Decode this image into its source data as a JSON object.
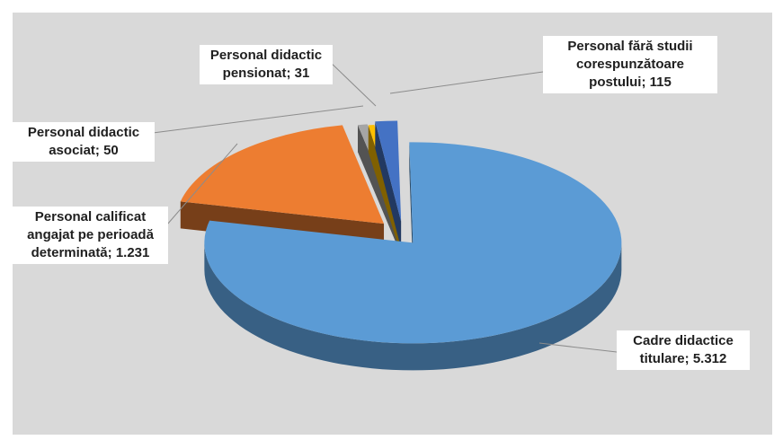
{
  "chart_data": {
    "type": "pie",
    "style": "3d exploded",
    "title": "",
    "legend": "none",
    "slices": [
      {
        "label": "Cadre didactice titulare; 5.312",
        "category": "Cadre didactice titulare",
        "value": 5312,
        "color": "#5b9bd5"
      },
      {
        "label": "Personal calificat angajat pe perioadă determinată; 1.231",
        "category": "Personal calificat angajat pe perioadă determinată",
        "value": 1231,
        "color": "#ed7d31"
      },
      {
        "label": "Personal didactic asociat; 50",
        "category": "Personal didactic asociat",
        "value": 50,
        "color": "#a5a5a5"
      },
      {
        "label": "Personal didactic pensionat; 31",
        "category": "Personal didactic pensionat",
        "value": 31,
        "color": "#ffc000"
      },
      {
        "label": "Personal fără studii corespunzătoare postului; 115",
        "category": "Personal fără studii corespunzătoare postului",
        "value": 115,
        "color": "#4472c4"
      }
    ]
  }
}
